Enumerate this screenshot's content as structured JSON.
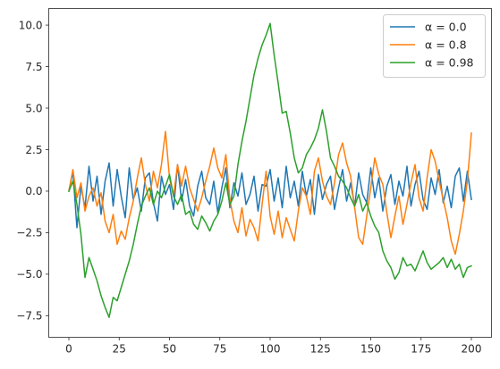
{
  "chart_data": {
    "type": "line",
    "title": "",
    "xlabel": "",
    "ylabel": "",
    "xlim": [
      -10,
      210
    ],
    "ylim": [
      -8.8,
      11.0
    ],
    "xticks": [
      0,
      25,
      50,
      75,
      100,
      125,
      150,
      175,
      200
    ],
    "xtick_labels": [
      "0",
      "25",
      "50",
      "75",
      "100",
      "125",
      "150",
      "175",
      "200"
    ],
    "yticks": [
      -7.5,
      -5.0,
      -2.5,
      0.0,
      2.5,
      5.0,
      7.5,
      10.0
    ],
    "ytick_labels": [
      "−7.5",
      "−5.0",
      "−2.5",
      "0.0",
      "2.5",
      "5.0",
      "7.5",
      "10.0"
    ],
    "grid": false,
    "legend_position": "top-right",
    "series": [
      {
        "name": "α = 0.0",
        "color": "#1f77b4",
        "x": [
          0,
          2,
          4,
          6,
          8,
          10,
          12,
          14,
          16,
          18,
          20,
          22,
          24,
          26,
          28,
          30,
          32,
          34,
          36,
          38,
          40,
          42,
          44,
          46,
          48,
          50,
          52,
          54,
          56,
          58,
          60,
          62,
          64,
          66,
          68,
          70,
          72,
          74,
          76,
          78,
          80,
          82,
          84,
          86,
          88,
          90,
          92,
          94,
          96,
          98,
          100,
          102,
          104,
          106,
          108,
          110,
          112,
          114,
          116,
          118,
          120,
          122,
          124,
          126,
          128,
          130,
          132,
          134,
          136,
          138,
          140,
          142,
          144,
          146,
          148,
          150,
          152,
          154,
          156,
          158,
          160,
          162,
          164,
          166,
          168,
          170,
          172,
          174,
          176,
          178,
          180,
          182,
          184,
          186,
          188,
          190,
          192,
          194,
          196,
          198,
          200
        ],
        "values": [
          0.0,
          1.2,
          -2.2,
          0.3,
          -1.0,
          1.5,
          -0.6,
          0.9,
          -1.4,
          0.6,
          1.7,
          -0.9,
          1.3,
          -0.3,
          -1.6,
          1.4,
          -0.5,
          0.2,
          -1.2,
          0.8,
          1.1,
          -0.7,
          -1.8,
          0.9,
          -0.2,
          0.4,
          -1.1,
          1.6,
          -0.6,
          0.7,
          -0.9,
          -1.5,
          0.3,
          1.2,
          -0.4,
          -0.8,
          0.6,
          -1.3,
          0.2,
          1.4,
          -1.0,
          0.5,
          -0.3,
          1.1,
          -0.8,
          -0.2,
          0.9,
          -1.2,
          0.4,
          0.3,
          1.3,
          -0.6,
          0.8,
          -1.0,
          1.5,
          -0.4,
          0.6,
          -0.9,
          1.2,
          -0.3,
          0.7,
          -1.4,
          1.0,
          -0.5,
          0.4,
          0.9,
          -1.1,
          0.2,
          1.3,
          -0.6,
          0.5,
          -0.9,
          1.1,
          -0.2,
          -0.7,
          1.4,
          -0.4,
          0.8,
          -1.2,
          0.3,
          1.0,
          -0.8,
          0.6,
          -0.3,
          1.5,
          -0.9,
          0.4,
          1.2,
          -0.5,
          -1.1,
          0.8,
          -0.2,
          1.3,
          -0.7,
          0.3,
          -1.0,
          0.9,
          1.4,
          -0.6,
          1.2,
          -0.5
        ]
      },
      {
        "name": "α = 0.8",
        "color": "#ff7f0e",
        "x": [
          0,
          2,
          4,
          6,
          8,
          10,
          12,
          14,
          16,
          18,
          20,
          22,
          24,
          26,
          28,
          30,
          32,
          34,
          36,
          38,
          40,
          42,
          44,
          46,
          48,
          50,
          52,
          54,
          56,
          58,
          60,
          62,
          64,
          66,
          68,
          70,
          72,
          74,
          76,
          78,
          80,
          82,
          84,
          86,
          88,
          90,
          92,
          94,
          96,
          98,
          100,
          102,
          104,
          106,
          108,
          110,
          112,
          114,
          116,
          118,
          120,
          122,
          124,
          126,
          128,
          130,
          132,
          134,
          136,
          138,
          140,
          142,
          144,
          146,
          148,
          150,
          152,
          154,
          156,
          158,
          160,
          162,
          164,
          166,
          168,
          170,
          172,
          174,
          176,
          178,
          180,
          182,
          184,
          186,
          188,
          190,
          192,
          194,
          196,
          198,
          200
        ],
        "values": [
          0.0,
          1.3,
          -0.4,
          0.5,
          -1.2,
          -0.3,
          0.2,
          -0.9,
          -0.1,
          -1.8,
          -2.5,
          -1.4,
          -3.2,
          -2.4,
          -2.9,
          -1.6,
          -0.6,
          0.8,
          2.0,
          0.4,
          -0.6,
          1.2,
          0.2,
          1.6,
          3.6,
          0.8,
          -0.3,
          1.6,
          0.3,
          1.5,
          0.2,
          -0.5,
          -1.2,
          -0.4,
          0.6,
          1.5,
          2.6,
          1.4,
          0.8,
          2.2,
          -0.5,
          -1.8,
          -2.5,
          -1.0,
          -2.7,
          -1.7,
          -2.2,
          -3.0,
          -0.8,
          1.2,
          -1.5,
          -2.6,
          -1.2,
          -2.8,
          -1.6,
          -2.3,
          -3.0,
          -1.2,
          0.2,
          -0.3,
          -1.4,
          1.2,
          2.0,
          0.6,
          -0.3,
          -0.8,
          0.5,
          2.2,
          2.9,
          1.7,
          0.9,
          -1.0,
          -2.8,
          -3.2,
          -1.5,
          0.2,
          2.0,
          1.0,
          0.4,
          -1.3,
          -2.8,
          -1.5,
          -0.3,
          -2.0,
          -0.8,
          0.5,
          1.6,
          -0.4,
          -1.2,
          0.8,
          2.5,
          1.8,
          0.6,
          -0.5,
          -1.6,
          -3.0,
          -3.8,
          -2.6,
          -1.2,
          0.6,
          3.5
        ]
      },
      {
        "name": "α = 0.98",
        "color": "#2ca02c",
        "x": [
          0,
          2,
          4,
          6,
          8,
          10,
          12,
          14,
          16,
          18,
          20,
          22,
          24,
          26,
          28,
          30,
          32,
          34,
          36,
          38,
          40,
          42,
          44,
          46,
          48,
          50,
          52,
          54,
          56,
          58,
          60,
          62,
          64,
          66,
          68,
          70,
          72,
          74,
          76,
          78,
          80,
          82,
          84,
          86,
          88,
          90,
          92,
          94,
          96,
          98,
          100,
          102,
          104,
          106,
          108,
          110,
          112,
          114,
          116,
          118,
          120,
          122,
          124,
          126,
          128,
          130,
          132,
          134,
          136,
          138,
          140,
          142,
          144,
          146,
          148,
          150,
          152,
          154,
          156,
          158,
          160,
          162,
          164,
          166,
          168,
          170,
          172,
          174,
          176,
          178,
          180,
          182,
          184,
          186,
          188,
          190,
          192,
          194,
          196,
          198,
          200
        ],
        "values": [
          0.0,
          0.6,
          -0.8,
          -2.6,
          -5.2,
          -4.0,
          -4.7,
          -5.4,
          -6.3,
          -7.0,
          -7.6,
          -6.4,
          -6.6,
          -5.8,
          -5.0,
          -4.2,
          -3.2,
          -2.0,
          -0.9,
          -0.3,
          0.2,
          -0.8,
          0.0,
          -0.4,
          0.3,
          1.0,
          -0.3,
          -0.8,
          -0.2,
          -1.4,
          -1.2,
          -2.0,
          -2.3,
          -1.5,
          -1.9,
          -2.4,
          -1.8,
          -1.4,
          -0.6,
          0.5,
          -0.8,
          -0.3,
          1.6,
          3.0,
          4.2,
          5.6,
          7.0,
          8.0,
          8.8,
          9.4,
          10.1,
          8.2,
          6.5,
          4.7,
          4.8,
          3.5,
          2.0,
          1.1,
          1.4,
          2.2,
          2.6,
          3.1,
          3.8,
          4.9,
          3.6,
          2.0,
          1.5,
          0.9,
          0.6,
          0.2,
          -0.4,
          -0.9,
          -0.2,
          -1.2,
          -0.7,
          -1.5,
          -2.1,
          -2.5,
          -3.6,
          -4.2,
          -4.6,
          -5.3,
          -4.9,
          -4.0,
          -4.5,
          -4.4,
          -4.8,
          -4.2,
          -3.6,
          -4.3,
          -4.7,
          -4.5,
          -4.3,
          -4.0,
          -4.6,
          -4.1,
          -4.7,
          -4.4,
          -5.2,
          -4.6,
          -4.5
        ]
      }
    ]
  }
}
